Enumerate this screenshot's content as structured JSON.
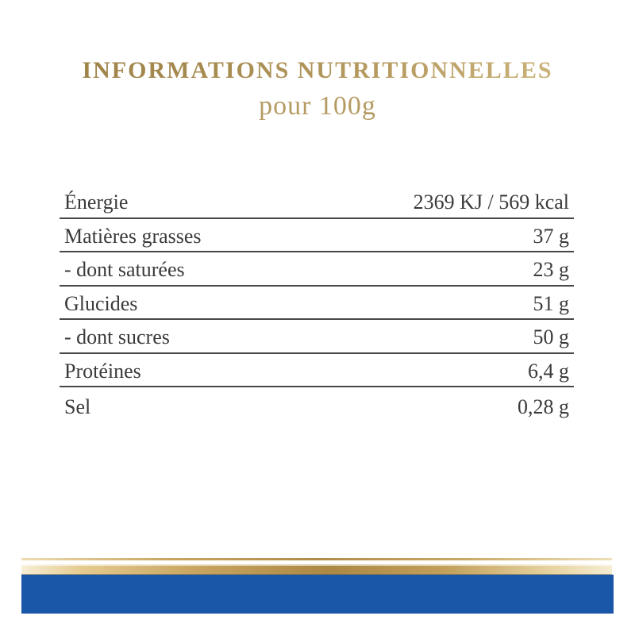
{
  "header": {
    "title": "INFORMATIONS NUTRITIONNELLES",
    "subtitle": "pour 100g"
  },
  "table": {
    "rows": [
      {
        "label": "Énergie",
        "value": "2369 KJ / 569 kcal"
      },
      {
        "label": "Matières grasses",
        "value": "37 g"
      },
      {
        "label": "- dont saturées",
        "value": "23 g"
      },
      {
        "label": "Glucides",
        "value": "51 g"
      },
      {
        "label": "- dont sucres",
        "value": "50 g"
      },
      {
        "label": "Protéines",
        "value": "6,4 g"
      },
      {
        "label": "Sel",
        "value": "0,28 g"
      }
    ]
  },
  "colors": {
    "title_gold_dark": "#9a7f46",
    "title_gold_light": "#cfb883",
    "subtitle_gold": "#b59b63",
    "table_text": "#3a3a3a",
    "table_rule": "#474747",
    "band_gold_center": "#ab8844",
    "band_gold_edge": "#f5ecd2",
    "band_blue": "#1a57a8"
  }
}
